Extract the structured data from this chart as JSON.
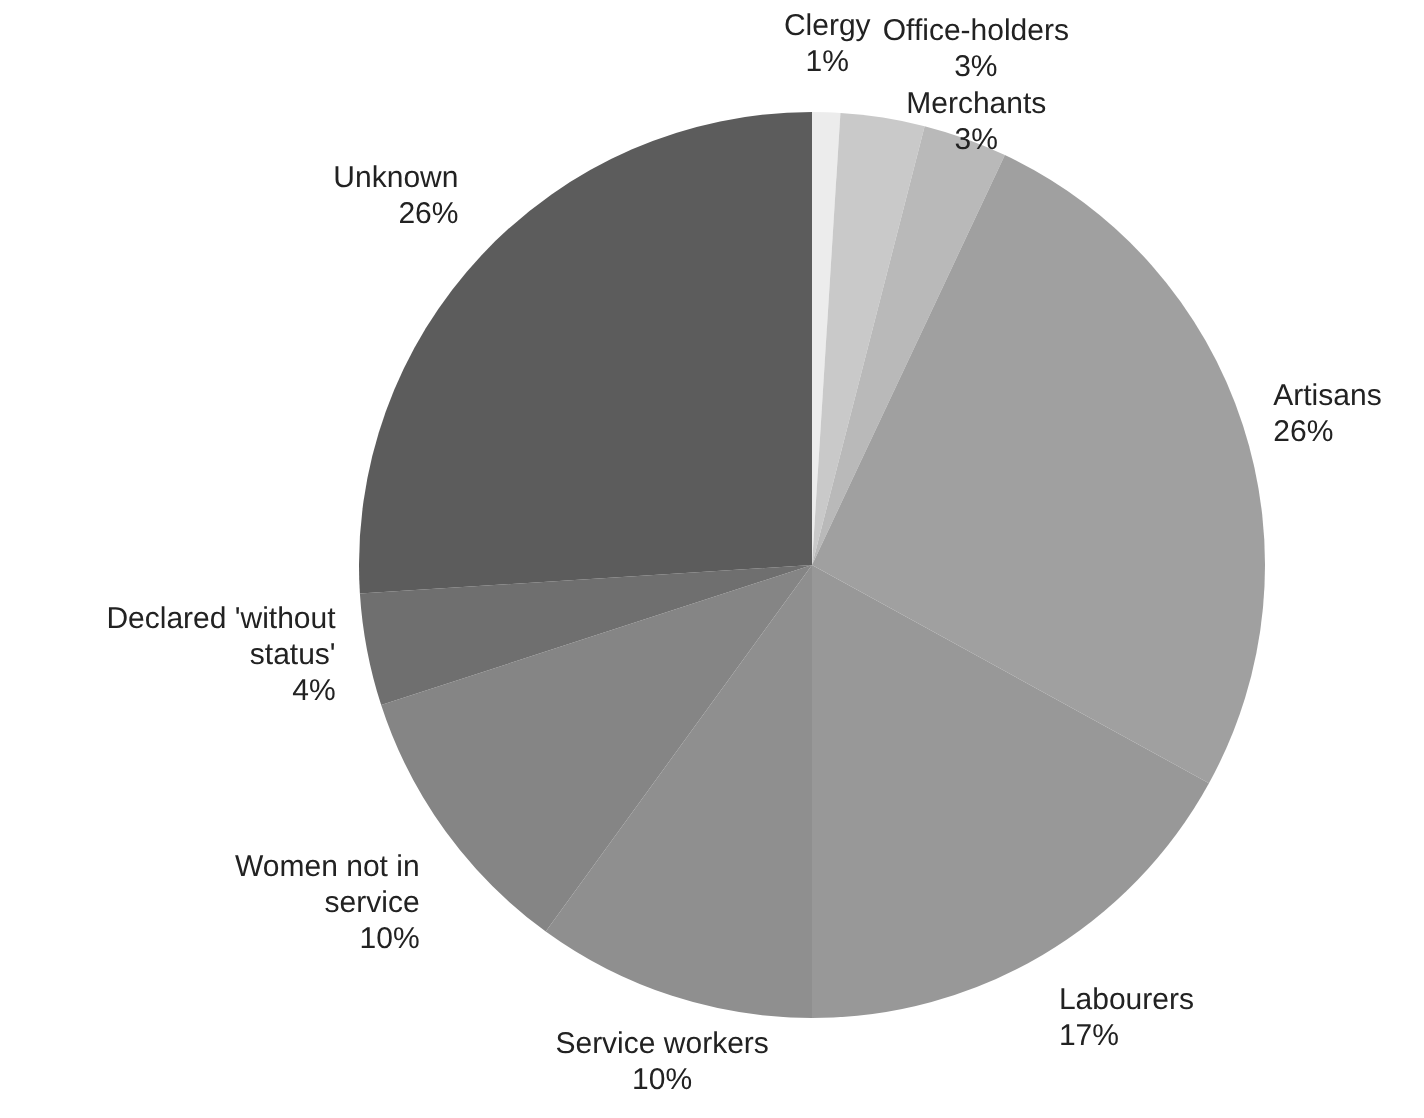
{
  "chart_data": {
    "type": "pie",
    "categories": [
      "Clergy",
      "Office-holders",
      "Merchants",
      "Artisans",
      "Labourers",
      "Service workers",
      "Women not in service",
      "Declared 'without status'",
      "Unknown"
    ],
    "values": [
      1,
      3,
      3,
      26,
      17,
      10,
      10,
      4,
      26
    ],
    "value_labels": [
      "1%",
      "3%",
      "3%",
      "26%",
      "17%",
      "10%",
      "10%",
      "4%",
      "26%"
    ],
    "colors": [
      "#ececec",
      "#c9c9c9",
      "#b9b9b9",
      "#a0a0a0",
      "#989898",
      "#8f8f8f",
      "#858585",
      "#6f6f6f",
      "#5c5c5c"
    ],
    "legend": false
  }
}
